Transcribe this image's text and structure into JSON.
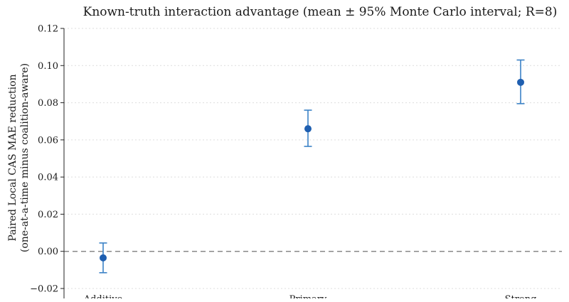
{
  "chart_data": {
    "type": "scatter",
    "title": "Known-truth interaction advantage (mean ± 95% Monte Carlo interval; R=8)",
    "xlabel": "",
    "ylabel_line1": "Paired Local CAS MAE reduction",
    "ylabel_line2": "(one-at-a-time minus coalition-aware)",
    "categories": [
      "Additive",
      "Primary",
      "Strong"
    ],
    "series": [
      {
        "values": [
          -0.0035,
          0.066,
          0.091
        ],
        "lower": [
          -0.0115,
          0.0565,
          0.0795
        ],
        "upper": [
          0.0045,
          0.076,
          0.103
        ]
      }
    ],
    "ylim": [
      -0.02,
      0.12
    ],
    "yticks": [
      -0.02,
      0.0,
      0.02,
      0.04,
      0.06,
      0.08,
      0.1,
      0.12
    ],
    "ytick_labels": [
      "−0.02",
      "0.00",
      "0.02",
      "0.04",
      "0.06",
      "0.08",
      "0.10",
      "0.12"
    ],
    "reference_line": 0.0,
    "grid": "horizontal dotted",
    "colors": {
      "marker": "#1f5fb0",
      "errorbar": "#3b82c6",
      "reference": "#888888",
      "grid": "#dddddd",
      "axis": "#222222"
    }
  }
}
